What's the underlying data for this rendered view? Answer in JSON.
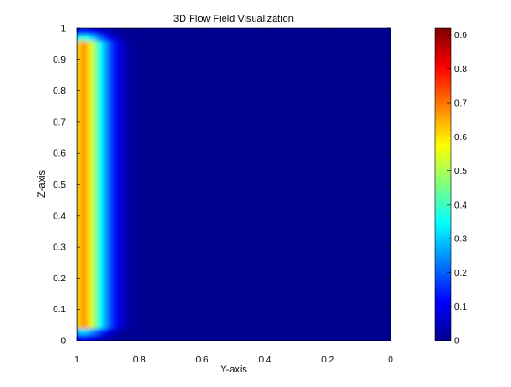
{
  "chart_data": {
    "type": "heatmap",
    "title": "3D Flow Field Visualization",
    "xlabel": "Y-axis",
    "ylabel": "Z-axis",
    "xlim": [
      1,
      0
    ],
    "x_reversed": true,
    "ylim": [
      0,
      1
    ],
    "x_ticks": [
      "1",
      "0.8",
      "0.6",
      "0.4",
      "0.2",
      "0"
    ],
    "y_ticks": [
      "0",
      "0.1",
      "0.2",
      "0.3",
      "0.4",
      "0.5",
      "0.6",
      "0.7",
      "0.8",
      "0.9",
      "1"
    ],
    "colorbar": {
      "colormap": "jet",
      "range": [
        0,
        0.92
      ],
      "ticks": [
        "0",
        "0.1",
        "0.2",
        "0.3",
        "0.4",
        "0.5",
        "0.6",
        "0.7",
        "0.8",
        "0.9"
      ]
    },
    "grid": false,
    "description_of_field": "values approx 0.55-0.65 near Y=1 (peak ~0.7 at Y≈0.98, Z 0.15-0.9), decaying to ~0.05 by Y≈0.8, near-zero elsewhere"
  }
}
